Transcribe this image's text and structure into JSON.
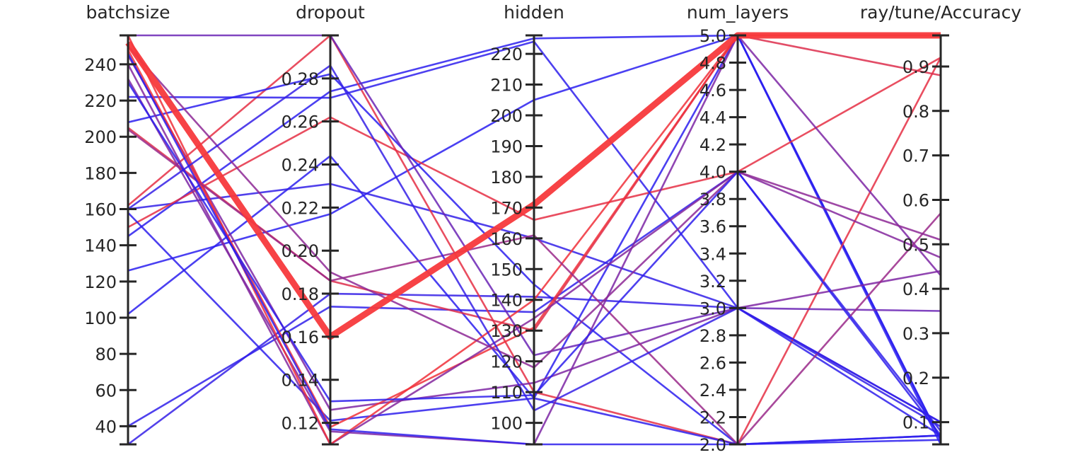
{
  "chart_data": {
    "type": "parallel_coordinates",
    "axes": [
      {
        "key": "batchsize",
        "label": "batchsize",
        "range": [
          30,
          256
        ],
        "ticks": [
          40,
          60,
          80,
          100,
          120,
          140,
          160,
          180,
          200,
          220,
          240
        ],
        "tick_labels": [
          "40",
          "60",
          "80",
          "100",
          "120",
          "140",
          "160",
          "180",
          "200",
          "220",
          "240"
        ]
      },
      {
        "key": "dropout",
        "label": "dropout",
        "range": [
          0.11,
          0.3
        ],
        "ticks": [
          0.12,
          0.14,
          0.16,
          0.18,
          0.2,
          0.22,
          0.24,
          0.26,
          0.28
        ],
        "tick_labels": [
          "0.12",
          "0.14",
          "0.16",
          "0.18",
          "0.20",
          "0.22",
          "0.24",
          "0.26",
          "0.28"
        ]
      },
      {
        "key": "hidden",
        "label": "hidden",
        "range": [
          93,
          226
        ],
        "ticks": [
          100,
          110,
          120,
          130,
          140,
          150,
          160,
          170,
          180,
          190,
          200,
          210,
          220
        ],
        "tick_labels": [
          "100",
          "110",
          "120",
          "130",
          "140",
          "150",
          "160",
          "170",
          "180",
          "190",
          "200",
          "210",
          "220"
        ]
      },
      {
        "key": "num_layers",
        "label": "num_layers",
        "range": [
          2.0,
          5.0
        ],
        "ticks": [
          2.0,
          2.2,
          2.4,
          2.6,
          2.8,
          3.0,
          3.2,
          3.4,
          3.6,
          3.8,
          4.0,
          4.2,
          4.4,
          4.6,
          4.8,
          5.0
        ],
        "tick_labels": [
          "2.0",
          "2.2",
          "2.4",
          "2.6",
          "2.8",
          "3.0",
          "3.2",
          "3.4",
          "3.6",
          "3.8",
          "4.0",
          "4.2",
          "4.4",
          "4.6",
          "4.8",
          "5.0"
        ]
      },
      {
        "key": "accuracy",
        "label": "ray/tune/Accuracy",
        "range": [
          0.05,
          0.97
        ],
        "ticks": [
          0.1,
          0.2,
          0.3,
          0.4,
          0.5,
          0.6,
          0.7,
          0.8,
          0.9
        ],
        "tick_labels": [
          "0.1",
          "0.2",
          "0.3",
          "0.4",
          "0.5",
          "0.6",
          "0.7",
          "0.8",
          "0.9"
        ]
      }
    ],
    "color_scale": {
      "low": "#2a1ff0",
      "high": "#f0303a",
      "by": "ray/tune/Accuracy"
    },
    "highlight": {
      "trial_index": 0,
      "color": "#f7393c"
    },
    "trials": [
      [
        252,
        0.16,
        171,
        5.0,
        0.97
      ],
      [
        30,
        0.18,
        141,
        3.0,
        0.1
      ],
      [
        40,
        0.174,
        136,
        4.0,
        0.08
      ],
      [
        102,
        0.244,
        108,
        5.0,
        0.06
      ],
      [
        126,
        0.217,
        205,
        5.0,
        0.05
      ],
      [
        145,
        0.274,
        225,
        5.0,
        0.06
      ],
      [
        160,
        0.231,
        160,
        3.0,
        0.09
      ],
      [
        162,
        0.3,
        110,
        2.0,
        0.92
      ],
      [
        150,
        0.262,
        166,
        4.0,
        0.92
      ],
      [
        222,
        0.271,
        224,
        3.0,
        0.07
      ],
      [
        208,
        0.282,
        145,
        2.0,
        0.06
      ],
      [
        205,
        0.186,
        130,
        5.0,
        0.88
      ],
      [
        158,
        0.121,
        108,
        2.0,
        0.07
      ],
      [
        245,
        0.126,
        113,
        3.0,
        0.44
      ],
      [
        248,
        0.118,
        131,
        5.0,
        0.97
      ],
      [
        232,
        0.116,
        93,
        5.0,
        0.43
      ],
      [
        240,
        0.11,
        134,
        4.0,
        0.47
      ],
      [
        256,
        0.11,
        140,
        5.0,
        0.97
      ],
      [
        256,
        0.3,
        122,
        3.0,
        0.35
      ],
      [
        204,
        0.186,
        161,
        2.0,
        0.57
      ],
      [
        250,
        0.19,
        118,
        4.0,
        0.51
      ],
      [
        160,
        0.286,
        104,
        3.0,
        0.1
      ],
      [
        246,
        0.117,
        93,
        2.0,
        0.07
      ],
      [
        230,
        0.13,
        109,
        4.0,
        0.07
      ]
    ]
  }
}
